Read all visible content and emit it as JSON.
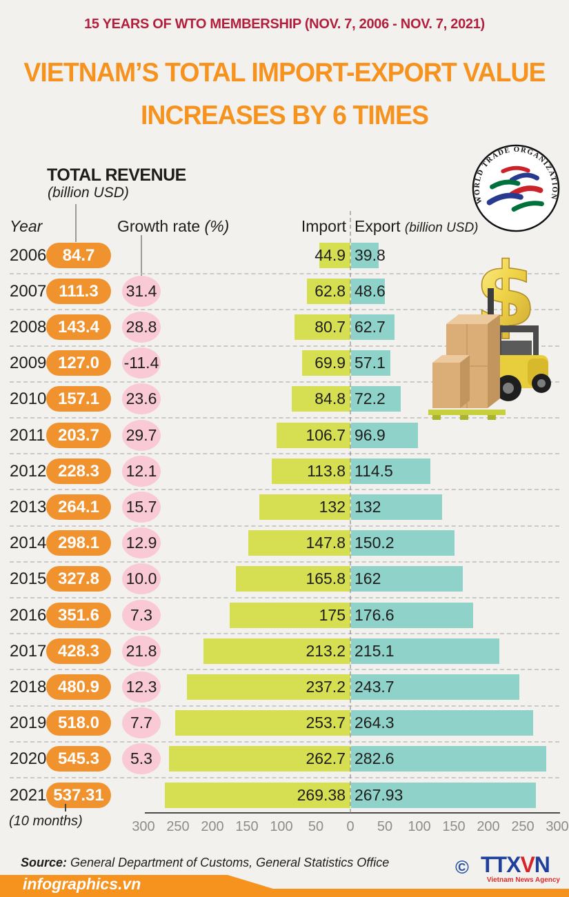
{
  "header": {
    "subtitle": "15 YEARS OF WTO MEMBERSHIP (NOV. 7, 2006 - NOV. 7, 2021)",
    "title_line1": "VIETNAM’S TOTAL IMPORT-EXPORT VALUE",
    "title_line2": "INCREASES BY 6 TIMES"
  },
  "legend": {
    "total_revenue_label": "TOTAL REVENUE",
    "total_revenue_unit": "(billion USD)",
    "year_label": "Year",
    "growth_label": "Growth rate ",
    "growth_unit": "(%)",
    "import_label": "Import",
    "export_label": "Export ",
    "export_unit": "(billion USD)"
  },
  "wto_logo_text": "WORLD TRADE ORGANIZATION",
  "chart_data": {
    "type": "bar",
    "subtype": "diverging-horizontal",
    "title": "Vietnam's total import-export value 2006-2021",
    "categories": [
      "2006",
      "2007",
      "2008",
      "2009",
      "2010",
      "2011",
      "2012",
      "2013",
      "2014",
      "2015",
      "2016",
      "2017",
      "2018",
      "2019",
      "2020",
      "2021"
    ],
    "series": [
      {
        "name": "Total revenue (billion USD)",
        "values": [
          84.7,
          111.3,
          143.4,
          127.0,
          157.1,
          203.7,
          228.3,
          264.1,
          298.1,
          327.8,
          351.6,
          428.3,
          480.9,
          518.0,
          545.3,
          537.31
        ]
      },
      {
        "name": "Growth rate (%)",
        "values": [
          null,
          31.4,
          28.8,
          -11.4,
          23.6,
          29.7,
          12.1,
          15.7,
          12.9,
          10.0,
          7.3,
          21.8,
          12.3,
          7.7,
          5.3,
          null
        ]
      },
      {
        "name": "Import (billion USD)",
        "values": [
          44.9,
          62.8,
          80.7,
          69.9,
          84.8,
          106.7,
          113.8,
          132,
          147.8,
          165.8,
          175,
          213.2,
          237.2,
          253.7,
          262.7,
          269.38
        ]
      },
      {
        "name": "Export (billion USD)",
        "values": [
          39.8,
          48.6,
          62.7,
          57.1,
          72.2,
          96.9,
          114.5,
          132,
          150.2,
          162,
          176.6,
          215.1,
          243.7,
          264.3,
          282.6,
          267.93
        ]
      }
    ],
    "rows": [
      {
        "year": "2006",
        "revenue": "84.7",
        "growth": null,
        "import": 44.9,
        "export": 39.8,
        "import_label": "44.9",
        "export_label": "39.8"
      },
      {
        "year": "2007",
        "revenue": "111.3",
        "growth": "31.4",
        "import": 62.8,
        "export": 48.6,
        "import_label": "62.8",
        "export_label": "48.6"
      },
      {
        "year": "2008",
        "revenue": "143.4",
        "growth": "28.8",
        "import": 80.7,
        "export": 62.7,
        "import_label": "80.7",
        "export_label": "62.7"
      },
      {
        "year": "2009",
        "revenue": "127.0",
        "growth": "-11.4",
        "import": 69.9,
        "export": 57.1,
        "import_label": "69.9",
        "export_label": "57.1"
      },
      {
        "year": "2010",
        "revenue": "157.1",
        "growth": "23.6",
        "import": 84.8,
        "export": 72.2,
        "import_label": "84.8",
        "export_label": "72.2"
      },
      {
        "year": "2011",
        "revenue": "203.7",
        "growth": "29.7",
        "import": 106.7,
        "export": 96.9,
        "import_label": "106.7",
        "export_label": "96.9"
      },
      {
        "year": "2012",
        "revenue": "228.3",
        "growth": "12.1",
        "import": 113.8,
        "export": 114.5,
        "import_label": "113.8",
        "export_label": "114.5"
      },
      {
        "year": "2013",
        "revenue": "264.1",
        "growth": "15.7",
        "import": 132,
        "export": 132,
        "import_label": "132",
        "export_label": "132"
      },
      {
        "year": "2014",
        "revenue": "298.1",
        "growth": "12.9",
        "import": 147.8,
        "export": 150.2,
        "import_label": "147.8",
        "export_label": "150.2"
      },
      {
        "year": "2015",
        "revenue": "327.8",
        "growth": "10.0",
        "import": 165.8,
        "export": 162,
        "import_label": "165.8",
        "export_label": "162"
      },
      {
        "year": "2016",
        "revenue": "351.6",
        "growth": "7.3",
        "import": 175,
        "export": 176.6,
        "import_label": "175",
        "export_label": "176.6"
      },
      {
        "year": "2017",
        "revenue": "428.3",
        "growth": "21.8",
        "import": 213.2,
        "export": 215.1,
        "import_label": "213.2",
        "export_label": "215.1"
      },
      {
        "year": "2018",
        "revenue": "480.9",
        "growth": "12.3",
        "import": 237.2,
        "export": 243.7,
        "import_label": "237.2",
        "export_label": "243.7"
      },
      {
        "year": "2019",
        "revenue": "518.0",
        "growth": "7.7",
        "import": 253.7,
        "export": 264.3,
        "import_label": "253.7",
        "export_label": "264.3"
      },
      {
        "year": "2020",
        "revenue": "545.3",
        "growth": "5.3",
        "import": 262.7,
        "export": 282.6,
        "import_label": "262.7",
        "export_label": "282.6"
      },
      {
        "year": "2021",
        "revenue": "537.31",
        "growth": null,
        "import": 269.38,
        "export": 267.93,
        "import_label": "269.38",
        "export_label": "267.93"
      }
    ],
    "axis_ticks": [
      "300",
      "250",
      "200",
      "150",
      "100",
      "50",
      "0",
      "50",
      "100",
      "150",
      "200",
      "250",
      "300"
    ],
    "x_max_each_side": 300,
    "note_2021": "(10 months)",
    "legend_position": "top",
    "grid": "dashed-row-separators",
    "colors": {
      "revenue_pill": "#f0922d",
      "growth_bubble": "#f9cad5",
      "import_bar": "#d6de51",
      "export_bar": "#8fd2c9",
      "title_orange": "#f6921e",
      "subtitle_crimson": "#b21e3c"
    }
  },
  "footer": {
    "source_label": "Source:",
    "source_text": " General Department of Customs,  General Statistics Office",
    "brand": "infographics.vn",
    "copyright": "©",
    "agency_logo_part1": "TTX",
    "agency_logo_part2": "V",
    "agency_logo_part3": "N",
    "agency_name": "Vietnam News Agency"
  }
}
